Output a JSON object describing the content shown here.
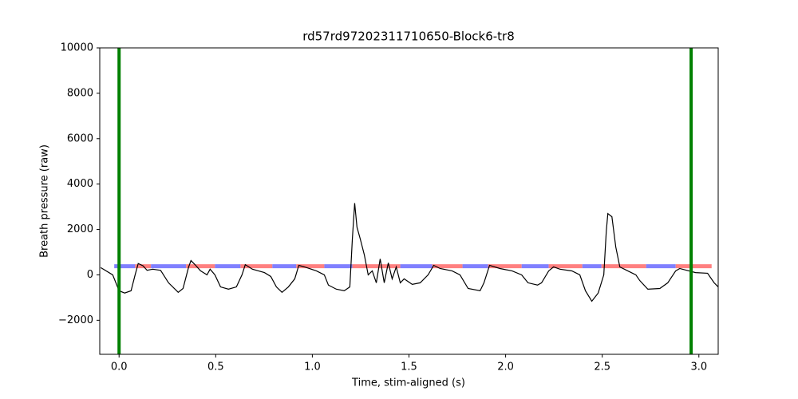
{
  "chart_data": {
    "type": "line",
    "title": "rd57rd97202311710650-Block6-tr8",
    "x_label": "Time, stim-aligned (s)",
    "y_label": "Breath pressure (raw)",
    "xlim": [
      -0.1,
      3.1
    ],
    "ylim": [
      -3500,
      10000
    ],
    "xticks": [
      {
        "value": 0,
        "label": "0.0"
      },
      {
        "value": 0.5,
        "label": "0.5"
      },
      {
        "value": 1,
        "label": "1.0"
      },
      {
        "value": 1.5,
        "label": "1.5"
      },
      {
        "value": 2,
        "label": "2.0"
      },
      {
        "value": 2.5,
        "label": "2.5"
      },
      {
        "value": 3,
        "label": "3.0"
      }
    ],
    "yticks": [
      {
        "value": -2000,
        "label": "−2000"
      },
      0,
      2000,
      4000,
      6000,
      8000,
      10000
    ],
    "x": [
      -0.095,
      -0.033,
      0,
      0.029,
      0.062,
      0.083,
      0.099,
      0.124,
      0.145,
      0.174,
      0.215,
      0.256,
      0.306,
      0.331,
      0.36,
      0.372,
      0.393,
      0.421,
      0.455,
      0.471,
      0.496,
      0.525,
      0.566,
      0.607,
      0.636,
      0.653,
      0.69,
      0.752,
      0.785,
      0.814,
      0.843,
      0.876,
      0.909,
      0.93,
      0.959,
      1.021,
      1.062,
      1.083,
      1.124,
      1.165,
      1.194,
      1.207,
      1.219,
      1.231,
      1.248,
      1.269,
      1.289,
      1.31,
      1.331,
      1.351,
      1.372,
      1.393,
      1.413,
      1.434,
      1.455,
      1.475,
      1.517,
      1.558,
      1.599,
      1.628,
      1.661,
      1.723,
      1.764,
      1.806,
      1.868,
      1.888,
      1.917,
      1.971,
      2.033,
      2.083,
      2.116,
      2.165,
      2.186,
      2.223,
      2.248,
      2.281,
      2.343,
      2.384,
      2.413,
      2.446,
      2.479,
      2.508,
      2.521,
      2.529,
      2.55,
      2.57,
      2.591,
      2.632,
      2.674,
      2.694,
      2.736,
      2.798,
      2.839,
      2.88,
      2.901,
      2.983,
      3.045,
      3.079,
      3.1
    ],
    "series": [
      {
        "color": "#000000",
        "values": [
          320,
          0,
          -700,
          -800,
          -700,
          0,
          500,
          400,
          200,
          250,
          200,
          -350,
          -770,
          -600,
          350,
          630,
          450,
          180,
          0,
          250,
          0,
          -530,
          -630,
          -530,
          0,
          450,
          250,
          100,
          -70,
          -530,
          -770,
          -530,
          -175,
          420,
          350,
          175,
          0,
          -450,
          -630,
          -700,
          -530,
          1580,
          3160,
          2100,
          1580,
          880,
          0,
          175,
          -350,
          700,
          -350,
          530,
          -175,
          350,
          -350,
          -175,
          -420,
          -350,
          0,
          420,
          280,
          175,
          0,
          -600,
          -700,
          -350,
          420,
          280,
          175,
          0,
          -350,
          -450,
          -350,
          175,
          350,
          250,
          175,
          0,
          -700,
          -1160,
          -800,
          0,
          1930,
          2700,
          2560,
          1230,
          350,
          175,
          0,
          -250,
          -630,
          -600,
          -350,
          175,
          280,
          100,
          70,
          -350,
          -530
        ]
      }
    ],
    "vlines": [
      {
        "x": 0,
        "color": "#008000"
      },
      {
        "x": 2.96,
        "color": "#008000"
      }
    ],
    "phase_level": 380,
    "phases": [
      {
        "start": -0.025,
        "end": 0.083,
        "color": "#8080ff"
      },
      {
        "start": 0.083,
        "end": 0.165,
        "color": "#ff8080"
      },
      {
        "start": 0.165,
        "end": 0.347,
        "color": "#8080ff"
      },
      {
        "start": 0.347,
        "end": 0.496,
        "color": "#ff8080"
      },
      {
        "start": 0.496,
        "end": 0.628,
        "color": "#8080ff"
      },
      {
        "start": 0.628,
        "end": 0.793,
        "color": "#ff8080"
      },
      {
        "start": 0.793,
        "end": 0.917,
        "color": "#8080ff"
      },
      {
        "start": 0.917,
        "end": 1.062,
        "color": "#ff8080"
      },
      {
        "start": 1.062,
        "end": 1.207,
        "color": "#8080ff"
      },
      {
        "start": 1.207,
        "end": 1.455,
        "color": "#ff8080"
      },
      {
        "start": 1.455,
        "end": 1.62,
        "color": "#8080ff"
      },
      {
        "start": 1.62,
        "end": 1.777,
        "color": "#ff8080"
      },
      {
        "start": 1.777,
        "end": 1.909,
        "color": "#8080ff"
      },
      {
        "start": 1.909,
        "end": 2.083,
        "color": "#ff8080"
      },
      {
        "start": 2.083,
        "end": 2.223,
        "color": "#8080ff"
      },
      {
        "start": 2.223,
        "end": 2.397,
        "color": "#ff8080"
      },
      {
        "start": 2.397,
        "end": 2.496,
        "color": "#8080ff"
      },
      {
        "start": 2.496,
        "end": 2.727,
        "color": "#ff8080"
      },
      {
        "start": 2.727,
        "end": 2.88,
        "color": "#8080ff"
      },
      {
        "start": 2.88,
        "end": 3.066,
        "color": "#ff8080"
      }
    ]
  }
}
